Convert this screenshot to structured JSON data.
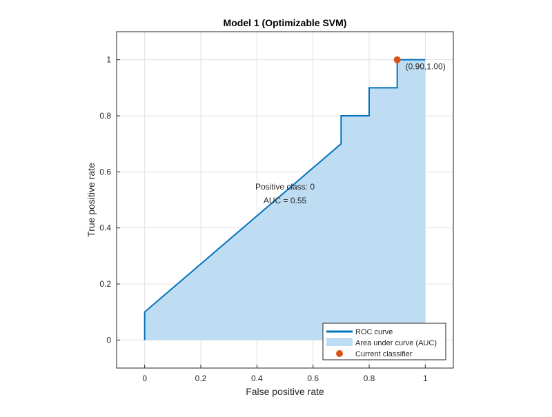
{
  "chart_data": {
    "type": "line",
    "title": "Model 1 (Optimizable SVM)",
    "xlabel": "False positive rate",
    "ylabel": "True positive rate",
    "xlim": [
      -0.1,
      1.1
    ],
    "ylim": [
      -0.1,
      1.1
    ],
    "xticks": [
      0,
      0.2,
      0.4,
      0.6,
      0.8,
      1
    ],
    "yticks": [
      0,
      0.2,
      0.4,
      0.6,
      0.8,
      1
    ],
    "xtick_labels": [
      "0",
      "0.2",
      "0.4",
      "0.6",
      "0.8",
      "1"
    ],
    "ytick_labels": [
      "0",
      "0.2",
      "0.4",
      "0.6",
      "0.8",
      "1"
    ],
    "grid": true,
    "roc_curve": {
      "x": [
        0,
        0,
        0.7,
        0.7,
        0.8,
        0.8,
        0.9,
        0.9,
        1.0
      ],
      "y": [
        0,
        0.1,
        0.7,
        0.8,
        0.8,
        0.9,
        0.9,
        1.0,
        1.0
      ]
    },
    "current_classifier": {
      "x": 0.9,
      "y": 1.0,
      "label": "(0.90,1.00)"
    },
    "annotations": {
      "positive_class": "Positive class: 0",
      "auc": "AUC = 0.55"
    },
    "legend": {
      "position": "bottom-right",
      "entries": [
        "ROC curve",
        "Area under curve (AUC)",
        "Current classifier"
      ]
    },
    "colors": {
      "roc_line": "#0072BD",
      "auc_fill": "#BFDDF2",
      "classifier_marker": "#D95319",
      "grid": "#E0E0E0",
      "axis": "#262626"
    }
  }
}
